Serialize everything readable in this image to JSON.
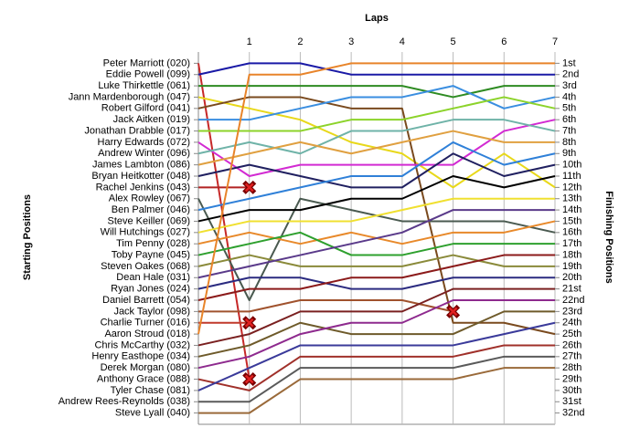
{
  "chart_data": {
    "type": "bump",
    "x_label": "Laps",
    "y_label": "Starting Positions",
    "y2_label": "Finishing Positions",
    "xlim": [
      0,
      7
    ],
    "xticks": [
      1,
      2,
      3,
      4,
      5,
      6,
      7
    ],
    "ylim": [
      0,
      33
    ],
    "y_reversed": true,
    "yticks": [
      {
        "value": 1,
        "label": "1st"
      },
      {
        "value": 2,
        "label": "2nd"
      },
      {
        "value": 3,
        "label": "3rd"
      },
      {
        "value": 4,
        "label": "4th"
      },
      {
        "value": 5,
        "label": "5th"
      },
      {
        "value": 6,
        "label": "6th"
      },
      {
        "value": 7,
        "label": "7th"
      },
      {
        "value": 8,
        "label": "8th"
      },
      {
        "value": 9,
        "label": "9th"
      },
      {
        "value": 10,
        "label": "10th"
      },
      {
        "value": 11,
        "label": "11th"
      },
      {
        "value": 12,
        "label": "12th"
      },
      {
        "value": 13,
        "label": "13th"
      },
      {
        "value": 14,
        "label": "14th"
      },
      {
        "value": 15,
        "label": "15th"
      },
      {
        "value": 16,
        "label": "16th"
      },
      {
        "value": 17,
        "label": "17th"
      },
      {
        "value": 18,
        "label": "18th"
      },
      {
        "value": 19,
        "label": "19th"
      },
      {
        "value": 20,
        "label": "20th"
      },
      {
        "value": 21,
        "label": "21st"
      },
      {
        "value": 22,
        "label": "22nd"
      },
      {
        "value": 23,
        "label": "23rd"
      },
      {
        "value": 24,
        "label": "24th"
      },
      {
        "value": 25,
        "label": "25th"
      },
      {
        "value": 26,
        "label": "26th"
      },
      {
        "value": 27,
        "label": "27th"
      },
      {
        "value": 28,
        "label": "28th"
      },
      {
        "value": 29,
        "label": "29th"
      },
      {
        "value": 30,
        "label": "30th"
      },
      {
        "value": 31,
        "label": "31st"
      },
      {
        "value": 32,
        "label": "32nd"
      }
    ],
    "x": [
      0,
      1,
      2,
      3,
      4,
      5,
      6,
      7
    ],
    "series": [
      {
        "name": "Peter Marriott (020)",
        "color": "#c62828",
        "values": [
          1,
          29,
          null,
          null,
          null,
          null,
          null,
          null
        ]
      },
      {
        "name": "Eddie Powell (099)",
        "color": "#1a1aa6",
        "values": [
          2,
          1,
          1,
          2,
          2,
          2,
          2,
          2
        ]
      },
      {
        "name": "Luke Thirkettle (061)",
        "color": "#2e8b22",
        "values": [
          3,
          3,
          3,
          3,
          3,
          4,
          3,
          3
        ]
      },
      {
        "name": "Jann Mardenborough (047)",
        "color": "#e8d81a",
        "values": [
          4,
          5,
          6,
          8,
          9,
          12,
          9,
          12
        ]
      },
      {
        "name": "Robert Gilford (041)",
        "color": "#7a4a1e",
        "values": [
          5,
          4,
          4,
          5,
          5,
          24,
          24,
          25
        ]
      },
      {
        "name": "Jack Aitken (019)",
        "color": "#3a8ee0",
        "values": [
          6,
          6,
          5,
          4,
          4,
          3,
          5,
          4
        ]
      },
      {
        "name": "Jonathan Drabble (017)",
        "color": "#8cd32a",
        "values": [
          7,
          7,
          7,
          6,
          6,
          5,
          4,
          5
        ]
      },
      {
        "name": "Harry Edwards (072)",
        "color": "#d22ad2",
        "values": [
          8,
          11,
          10,
          10,
          10,
          10,
          7,
          6
        ]
      },
      {
        "name": "Andrew Winter (096)",
        "color": "#6fb3a8",
        "values": [
          9,
          8,
          9,
          7,
          7,
          6,
          6,
          7
        ]
      },
      {
        "name": "James Lambton (086)",
        "color": "#e0a040",
        "values": [
          10,
          9,
          8,
          9,
          8,
          7,
          8,
          8
        ]
      },
      {
        "name": "Bryan Heitkotter (048)",
        "color": "#202060",
        "values": [
          11,
          10,
          11,
          12,
          12,
          9,
          11,
          10
        ]
      },
      {
        "name": "Rachel Jenkins (043)",
        "color": "#b22222",
        "values": [
          12,
          12,
          null,
          null,
          null,
          null,
          null,
          null
        ]
      },
      {
        "name": "Alex Rowley (067)",
        "color": "#4a5a50",
        "values": [
          13,
          22,
          13,
          14,
          15,
          15,
          15,
          16
        ]
      },
      {
        "name": "Ben Palmer (046)",
        "color": "#2f80d8",
        "values": [
          14,
          13,
          12,
          11,
          11,
          8,
          10,
          9
        ]
      },
      {
        "name": "Steve Keiller (069)",
        "color": "#000000",
        "values": [
          15,
          14,
          14,
          13,
          13,
          11,
          12,
          11
        ]
      },
      {
        "name": "Will Hutchings (027)",
        "color": "#f0e030",
        "values": [
          16,
          15,
          15,
          15,
          14,
          13,
          13,
          13
        ]
      },
      {
        "name": "Tim Penny (028)",
        "color": "#e8892a",
        "values": [
          17,
          16,
          17,
          16,
          17,
          16,
          16,
          15
        ]
      },
      {
        "name": "Toby Payne (045)",
        "color": "#2ea02e",
        "values": [
          18,
          17,
          16,
          18,
          18,
          17,
          17,
          17
        ]
      },
      {
        "name": "Steven Oakes (068)",
        "color": "#8a8a3a",
        "values": [
          19,
          18,
          19,
          19,
          19,
          18,
          19,
          19
        ]
      },
      {
        "name": "Dean Hale (031)",
        "color": "#5a3a8a",
        "values": [
          20,
          19,
          18,
          17,
          16,
          14,
          14,
          14
        ]
      },
      {
        "name": "Ryan Jones (024)",
        "color": "#2b2b80",
        "values": [
          21,
          20,
          20,
          21,
          21,
          20,
          20,
          20
        ]
      },
      {
        "name": "Daniel Barrett (054)",
        "color": "#8b1a1a",
        "values": [
          22,
          21,
          21,
          20,
          20,
          19,
          18,
          18
        ]
      },
      {
        "name": "Jack Taylor (098)",
        "color": "#a0522d",
        "values": [
          23,
          23,
          22,
          22,
          22,
          23,
          null,
          null
        ]
      },
      {
        "name": "Charlie Turner (016)",
        "color": "#c0392b",
        "values": [
          24,
          24,
          null,
          null,
          null,
          null,
          null,
          null
        ]
      },
      {
        "name": "Aaron Stroud (018)",
        "color": "#e8842a",
        "values": [
          25,
          2,
          2,
          1,
          1,
          1,
          1,
          1
        ]
      },
      {
        "name": "Chris McCarthy (032)",
        "color": "#7a2020",
        "values": [
          26,
          25,
          23,
          23,
          23,
          21,
          21,
          21
        ]
      },
      {
        "name": "Henry Easthope (034)",
        "color": "#6e5a2a",
        "values": [
          27,
          26,
          24,
          25,
          25,
          25,
          23,
          23
        ]
      },
      {
        "name": "Derek Morgan (080)",
        "color": "#8e2a8e",
        "values": [
          28,
          27,
          25,
          24,
          24,
          22,
          22,
          22
        ]
      },
      {
        "name": "Anthony Grace (088)",
        "color": "#a0302a",
        "values": [
          29,
          30,
          27,
          27,
          27,
          27,
          26,
          26
        ]
      },
      {
        "name": "Tyler Chase (081)",
        "color": "#3a3a9a",
        "values": [
          30,
          28,
          26,
          26,
          26,
          26,
          25,
          24
        ]
      },
      {
        "name": "Andrew Rees-Reynolds (038)",
        "color": "#5a5a5a",
        "values": [
          31,
          31,
          28,
          28,
          28,
          28,
          27,
          27
        ]
      },
      {
        "name": "Steve Lyall (040)",
        "color": "#9a6a3a",
        "values": [
          32,
          32,
          29,
          29,
          29,
          29,
          28,
          28
        ]
      }
    ]
  }
}
